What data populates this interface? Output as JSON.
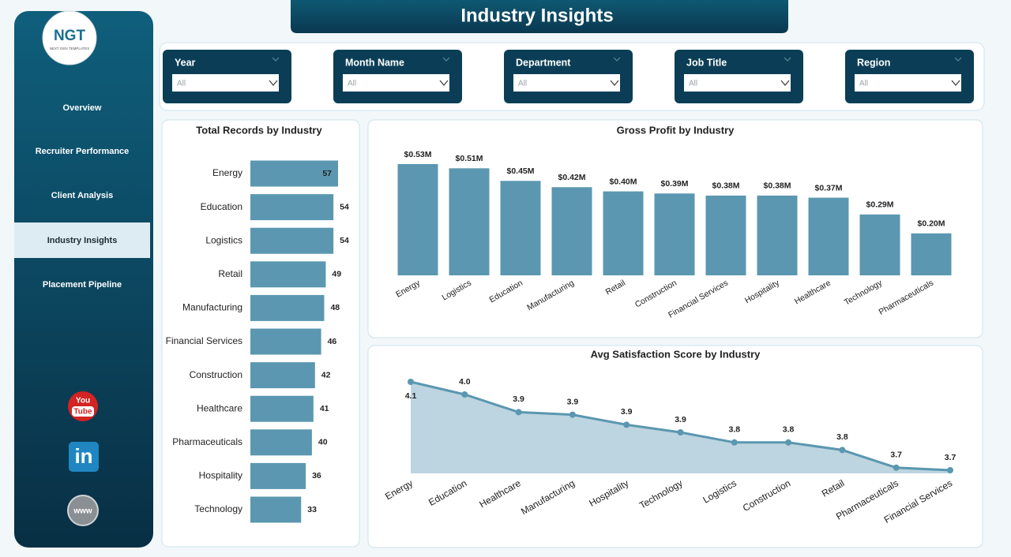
{
  "header": {
    "title": "Industry Insights"
  },
  "logo": {
    "text": "NGT",
    "subtitle": "NEXT GEN TEMPLATES"
  },
  "nav": {
    "items": [
      "Overview",
      "Recruiter Performance",
      "Client Analysis",
      "Industry Insights",
      "Placement Pipeline"
    ],
    "active": 3
  },
  "social": {
    "youtube": [
      "You",
      "Tube"
    ],
    "linkedin": "in",
    "website": "www"
  },
  "filters": [
    {
      "label": "Year",
      "value": "All"
    },
    {
      "label": "Month Name",
      "value": "All"
    },
    {
      "label": "Department",
      "value": "All"
    },
    {
      "label": "Job Title",
      "value": "All"
    },
    {
      "label": "Region",
      "value": "All"
    }
  ],
  "chart_data": [
    {
      "type": "barh",
      "title": "Total Records by Industry",
      "color": "#5b97b0",
      "categories": [
        "Energy",
        "Education",
        "Logistics",
        "Retail",
        "Manufacturing",
        "Financial Services",
        "Construction",
        "Healthcare",
        "Pharmaceuticals",
        "Hospitality",
        "Technology"
      ],
      "values": [
        57,
        54,
        54,
        49,
        48,
        46,
        42,
        41,
        40,
        36,
        33
      ]
    },
    {
      "type": "bar",
      "title": "Gross Profit by Industry",
      "color": "#5b97b0",
      "categories": [
        "Energy",
        "Logistics",
        "Education",
        "Manufacturing",
        "Retail",
        "Construction",
        "Financial Services",
        "Hospitality",
        "Healthcare",
        "Technology",
        "Pharmaceuticals"
      ],
      "values": [
        0.53,
        0.51,
        0.45,
        0.42,
        0.4,
        0.39,
        0.38,
        0.38,
        0.37,
        0.29,
        0.2
      ],
      "value_labels": [
        "$0.53M",
        "$0.51M",
        "$0.45M",
        "$0.42M",
        "$0.40M",
        "$0.39M",
        "$0.38M",
        "$0.38M",
        "$0.37M",
        "$0.29M",
        "$0.20M"
      ]
    },
    {
      "type": "area",
      "title": "Avg Satisfaction Score by Industry",
      "color": "#5b97b0",
      "fill": "#bdd5e0",
      "categories": [
        "Energy",
        "Education",
        "Healthcare",
        "Manufacturing",
        "Hospitality",
        "Technology",
        "Logistics",
        "Construction",
        "Retail",
        "Pharmaceuticals",
        "Financial Services"
      ],
      "values": [
        4.06,
        4.01,
        3.94,
        3.93,
        3.89,
        3.86,
        3.82,
        3.82,
        3.79,
        3.72,
        3.71
      ],
      "value_labels": [
        "4.1",
        "4.0",
        "3.9",
        "3.9",
        "3.9",
        "3.9",
        "3.8",
        "3.8",
        "3.8",
        "3.7",
        "3.7"
      ]
    }
  ]
}
